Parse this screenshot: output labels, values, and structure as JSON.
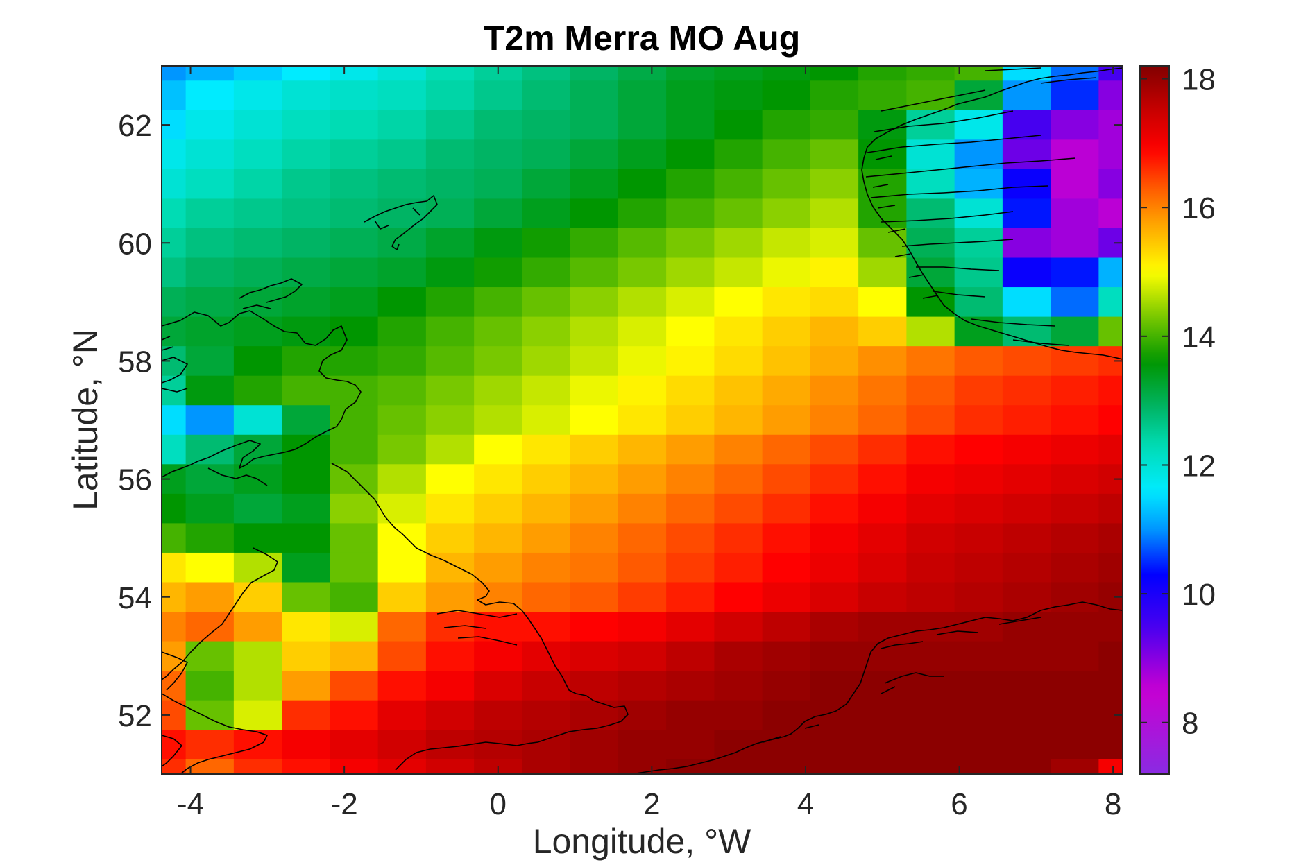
{
  "chart_data": {
    "type": "heatmap",
    "title": "T2m Merra MO Aug",
    "xlabel": "Longitude, °W",
    "ylabel": "Latitude, °N",
    "xlim": [
      -4.375,
      8.125
    ],
    "ylim": [
      51,
      63
    ],
    "x_ticks": [
      -4,
      -2,
      0,
      2,
      4,
      6,
      8
    ],
    "y_ticks": [
      52,
      54,
      56,
      58,
      60,
      62
    ],
    "x_tick_labels": [
      "-4",
      "-2",
      "0",
      "2",
      "4",
      "6",
      "8"
    ],
    "y_tick_labels": [
      "52",
      "54",
      "56",
      "58",
      "60",
      "62"
    ],
    "colorbar": {
      "limits": [
        7.2,
        18.2
      ],
      "ticks": [
        8,
        10,
        12,
        14,
        16,
        18
      ],
      "tick_labels": [
        "8",
        "10",
        "12",
        "14",
        "16",
        "18"
      ],
      "colormap": "jet-like (purple to dark red)"
    },
    "grid": {
      "cell_lon_step": 0.625,
      "cell_lat_step": 0.5,
      "lon_centers": [
        -4.375,
        -3.75,
        -3.125,
        -2.5,
        -1.875,
        -1.25,
        -0.625,
        0,
        0.625,
        1.25,
        1.875,
        2.5,
        3.125,
        3.75,
        4.375,
        5,
        5.625,
        6.25,
        6.875,
        7.5,
        8.125
      ],
      "lat_centers_top_to_bottom": [
        63,
        62.5,
        62,
        61.5,
        61,
        60.5,
        60,
        59.5,
        59,
        58.5,
        58,
        57.5,
        57,
        56.5,
        56,
        55.5,
        55,
        54.5,
        54,
        53.5,
        53,
        52.5,
        52,
        51.5,
        51
      ],
      "values_celsius_rows_top_to_bottom": [
        [
          11.0,
          11.2,
          11.4,
          11.6,
          11.8,
          12.0,
          12.3,
          12.5,
          12.7,
          12.9,
          13.1,
          13.3,
          13.4,
          13.5,
          13.6,
          13.8,
          13.9,
          14.0,
          11.5,
          10.8,
          9.5
        ],
        [
          11.3,
          11.6,
          11.8,
          12.0,
          12.1,
          12.2,
          12.4,
          12.6,
          12.8,
          13.0,
          13.2,
          13.4,
          13.5,
          13.6,
          13.8,
          13.9,
          14.0,
          13.2,
          11.0,
          10.5,
          9.0
        ],
        [
          11.5,
          11.8,
          12.0,
          12.2,
          12.3,
          12.4,
          12.6,
          12.8,
          12.9,
          13.0,
          13.2,
          13.4,
          13.6,
          13.8,
          13.9,
          13.5,
          12.5,
          11.8,
          9.5,
          9.0,
          8.8
        ],
        [
          11.8,
          12.0,
          12.2,
          12.4,
          12.5,
          12.6,
          12.8,
          12.9,
          13.0,
          13.2,
          13.4,
          13.6,
          13.8,
          14.0,
          14.2,
          13.6,
          12.0,
          11.0,
          9.2,
          8.6,
          8.8
        ],
        [
          12.0,
          12.2,
          12.4,
          12.6,
          12.7,
          12.8,
          12.9,
          13.0,
          13.2,
          13.4,
          13.6,
          13.8,
          14.0,
          14.2,
          14.4,
          13.8,
          12.2,
          11.2,
          10.2,
          8.6,
          9.0
        ],
        [
          12.3,
          12.5,
          12.6,
          12.7,
          12.8,
          12.9,
          13.0,
          13.2,
          13.4,
          13.6,
          13.8,
          14.0,
          14.2,
          14.4,
          14.6,
          13.8,
          12.8,
          12.0,
          10.4,
          8.8,
          8.6
        ],
        [
          12.5,
          12.7,
          12.8,
          12.9,
          13.0,
          13.1,
          13.3,
          13.5,
          13.7,
          13.9,
          14.1,
          14.3,
          14.5,
          14.7,
          14.8,
          14.2,
          13.0,
          12.5,
          9.0,
          8.8,
          9.2
        ],
        [
          12.7,
          12.9,
          13.0,
          13.1,
          13.2,
          13.3,
          13.5,
          13.7,
          13.9,
          14.1,
          14.3,
          14.5,
          14.7,
          14.9,
          15.1,
          14.5,
          13.2,
          12.6,
          10.2,
          10.4,
          11.2
        ],
        [
          13.0,
          13.1,
          13.2,
          13.3,
          13.4,
          13.6,
          13.8,
          14.0,
          14.2,
          14.4,
          14.6,
          14.8,
          15.0,
          15.2,
          15.3,
          15.0,
          13.6,
          12.8,
          11.5,
          10.8,
          12.2
        ],
        [
          13.2,
          13.3,
          13.4,
          13.5,
          13.6,
          13.8,
          14.0,
          14.2,
          14.4,
          14.6,
          14.8,
          15.0,
          15.2,
          15.4,
          15.6,
          15.4,
          14.6,
          13.4,
          12.8,
          13.2,
          14.2
        ],
        [
          12.8,
          13.2,
          13.6,
          13.8,
          13.8,
          13.9,
          14.1,
          14.3,
          14.5,
          14.7,
          14.9,
          15.1,
          15.3,
          15.5,
          15.7,
          15.9,
          16.1,
          16.3,
          16.4,
          16.5,
          16.6
        ],
        [
          12.5,
          13.5,
          13.8,
          14.0,
          14.0,
          14.1,
          14.3,
          14.5,
          14.7,
          14.9,
          15.1,
          15.3,
          15.5,
          15.7,
          15.9,
          16.1,
          16.3,
          16.5,
          16.6,
          16.7,
          16.8
        ],
        [
          11.5,
          11.0,
          12.0,
          13.2,
          14.0,
          14.2,
          14.4,
          14.6,
          14.8,
          15.0,
          15.2,
          15.4,
          15.6,
          15.8,
          16.0,
          16.2,
          16.4,
          16.6,
          16.7,
          16.8,
          16.9
        ],
        [
          12.2,
          12.8,
          13.2,
          13.6,
          14.0,
          14.3,
          14.6,
          15.0,
          15.2,
          15.4,
          15.6,
          15.8,
          16.0,
          16.2,
          16.4,
          16.6,
          16.8,
          16.9,
          17.0,
          17.1,
          17.2
        ],
        [
          13.4,
          13.2,
          13.4,
          13.6,
          14.2,
          14.6,
          15.0,
          15.2,
          15.4,
          15.6,
          15.8,
          16.0,
          16.2,
          16.4,
          16.6,
          16.8,
          17.0,
          17.1,
          17.2,
          17.3,
          17.4
        ],
        [
          13.6,
          13.4,
          13.2,
          13.4,
          14.4,
          14.8,
          15.2,
          15.4,
          15.6,
          15.8,
          16.0,
          16.2,
          16.4,
          16.6,
          16.8,
          17.0,
          17.2,
          17.3,
          17.4,
          17.5,
          17.6
        ],
        [
          14.0,
          13.8,
          13.6,
          13.6,
          14.2,
          15.0,
          15.4,
          15.6,
          15.8,
          16.0,
          16.2,
          16.4,
          16.6,
          16.8,
          17.0,
          17.2,
          17.4,
          17.5,
          17.6,
          17.7,
          17.8
        ],
        [
          15.2,
          15.0,
          14.6,
          13.4,
          14.2,
          15.0,
          15.6,
          15.8,
          16.0,
          16.1,
          16.3,
          16.5,
          16.7,
          16.9,
          17.1,
          17.3,
          17.5,
          17.6,
          17.7,
          17.8,
          17.9
        ],
        [
          15.6,
          15.8,
          15.4,
          14.2,
          14.0,
          15.4,
          15.8,
          16.0,
          16.2,
          16.3,
          16.5,
          16.7,
          16.9,
          17.1,
          17.3,
          17.5,
          17.6,
          17.7,
          17.8,
          17.9,
          18.0
        ],
        [
          16.0,
          16.2,
          15.8,
          15.2,
          14.8,
          16.2,
          16.6,
          16.8,
          16.8,
          16.9,
          17.0,
          17.2,
          17.4,
          17.6,
          17.8,
          17.9,
          17.9,
          17.9,
          18.0,
          18.0,
          18.0
        ],
        [
          15.8,
          14.2,
          14.6,
          15.4,
          15.6,
          16.4,
          16.8,
          17.0,
          17.2,
          17.3,
          17.4,
          17.6,
          17.8,
          17.9,
          18.0,
          18.0,
          18.0,
          18.0,
          18.0,
          18.0,
          18.1
        ],
        [
          16.2,
          14.0,
          14.6,
          15.8,
          16.4,
          16.8,
          17.0,
          17.3,
          17.5,
          17.6,
          17.7,
          17.8,
          17.9,
          18.0,
          18.1,
          18.1,
          18.1,
          18.1,
          18.1,
          18.1,
          18.1
        ],
        [
          16.4,
          14.2,
          14.8,
          16.6,
          16.8,
          17.2,
          17.4,
          17.6,
          17.7,
          17.8,
          17.9,
          18.0,
          18.0,
          18.1,
          18.1,
          18.1,
          18.1,
          18.1,
          18.1,
          18.1,
          18.1
        ],
        [
          16.8,
          16.6,
          16.8,
          17.0,
          17.2,
          17.4,
          17.6,
          17.7,
          17.8,
          17.9,
          18.0,
          18.0,
          18.1,
          18.1,
          18.1,
          18.1,
          18.1,
          18.1,
          18.1,
          18.1,
          18.1
        ],
        [
          16.6,
          16.2,
          16.6,
          16.8,
          17.0,
          17.2,
          17.4,
          17.6,
          17.8,
          17.9,
          18.0,
          18.1,
          18.1,
          18.1,
          18.1,
          18.1,
          18.1,
          18.1,
          18.1,
          17.9,
          17.0
        ]
      ]
    },
    "overlay": "coastlines (black lines)"
  }
}
